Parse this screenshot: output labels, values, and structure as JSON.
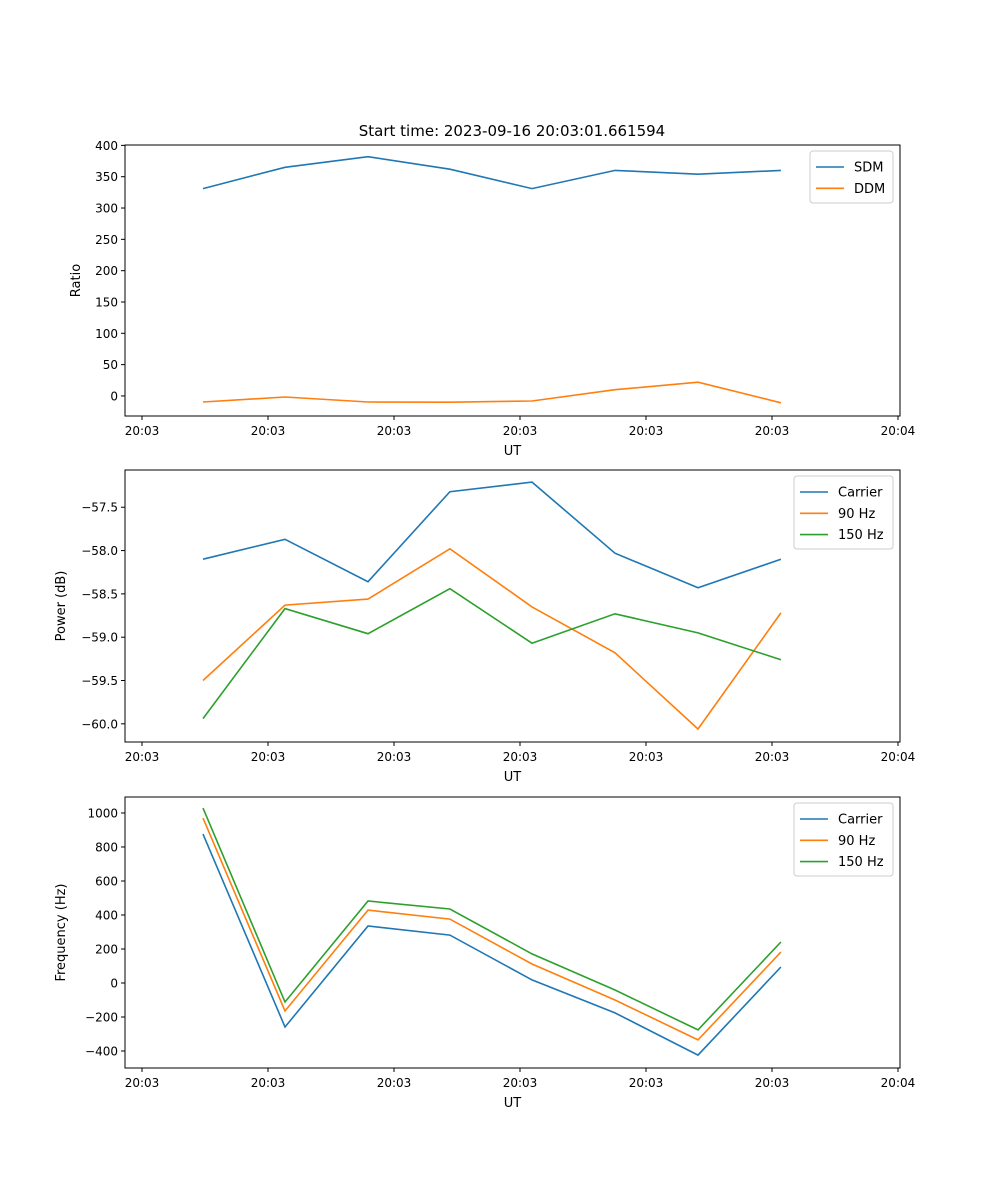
{
  "title": "Start time: 2023-09-16 20:03:01.661594",
  "chart_data": [
    {
      "type": "line",
      "xlabel": "UT",
      "ylabel": "Ratio",
      "xlim": [
        -1.35,
        60.16
      ],
      "ylim": [
        -32,
        400.6
      ],
      "x_ticks": [
        0,
        10,
        20,
        30,
        40,
        50,
        60
      ],
      "x_tick_labels": [
        "20:03",
        "20:03",
        "20:03",
        "20:03",
        "20:03",
        "20:03",
        "20:04"
      ],
      "y_ticks": [
        0,
        50,
        100,
        150,
        200,
        250,
        300,
        350,
        400
      ],
      "y_tick_labels": [
        "0",
        "50",
        "100",
        "150",
        "200",
        "250",
        "300",
        "350",
        "400"
      ],
      "legend_position": "top-right",
      "x": [
        4.84,
        11.35,
        17.94,
        24.44,
        30.95,
        37.54,
        44.13,
        50.71
      ],
      "series": [
        {
          "name": "SDM",
          "color": "#1f77b4",
          "values": [
            331,
            365,
            382,
            362,
            331,
            360,
            354,
            360
          ]
        },
        {
          "name": "DDM",
          "color": "#ff7f0e",
          "values": [
            -9.6,
            -1.6,
            -9.6,
            -10,
            -8,
            10,
            22,
            -11
          ]
        }
      ]
    },
    {
      "type": "line",
      "xlabel": "UT",
      "ylabel": "Power (dB)",
      "xlim": [
        -1.35,
        60.16
      ],
      "ylim": [
        -60.21,
        -57.07
      ],
      "x_ticks": [
        0,
        10,
        20,
        30,
        40,
        50,
        60
      ],
      "x_tick_labels": [
        "20:03",
        "20:03",
        "20:03",
        "20:03",
        "20:03",
        "20:03",
        "20:04"
      ],
      "y_ticks": [
        -57.5,
        -58.0,
        -58.5,
        -59.0,
        -59.5,
        -60.0
      ],
      "y_tick_labels": [
        "−57.5",
        "−58.0",
        "−58.5",
        "−59.0",
        "−59.5",
        "−60.0"
      ],
      "legend_position": "top-right",
      "x": [
        4.84,
        11.35,
        17.94,
        24.44,
        30.95,
        37.54,
        44.13,
        50.71
      ],
      "series": [
        {
          "name": "Carrier",
          "color": "#1f77b4",
          "values": [
            -58.1,
            -57.87,
            -58.36,
            -57.32,
            -57.21,
            -58.03,
            -58.43,
            -58.1
          ]
        },
        {
          "name": "90 Hz",
          "color": "#ff7f0e",
          "values": [
            -59.5,
            -58.63,
            -58.56,
            -57.98,
            -58.65,
            -59.18,
            -60.06,
            -58.72
          ]
        },
        {
          "name": "150 Hz",
          "color": "#2ca02c",
          "values": [
            -59.94,
            -58.67,
            -58.96,
            -58.44,
            -59.07,
            -58.73,
            -58.95,
            -59.26
          ]
        }
      ]
    },
    {
      "type": "line",
      "xlabel": "UT",
      "ylabel": "Frequency (Hz)",
      "xlim": [
        -1.35,
        60.16
      ],
      "ylim": [
        -500,
        1094
      ],
      "x_ticks": [
        0,
        10,
        20,
        30,
        40,
        50,
        60
      ],
      "x_tick_labels": [
        "20:03",
        "20:03",
        "20:03",
        "20:03",
        "20:03",
        "20:03",
        "20:04"
      ],
      "y_ticks": [
        1000,
        800,
        600,
        400,
        200,
        0,
        -200,
        -400
      ],
      "y_tick_labels": [
        "1000",
        "800",
        "600",
        "400",
        "200",
        "0",
        "−200",
        "−400"
      ],
      "legend_position": "top-right",
      "x": [
        4.84,
        11.35,
        17.94,
        24.44,
        30.95,
        37.54,
        44.13,
        50.71
      ],
      "series": [
        {
          "name": "Carrier",
          "color": "#1f77b4",
          "values": [
            876,
            -259,
            335,
            282,
            18,
            -176,
            -424,
            94
          ]
        },
        {
          "name": "90 Hz",
          "color": "#ff7f0e",
          "values": [
            970,
            -165,
            429,
            376,
            112,
            -100,
            -335,
            182
          ]
        },
        {
          "name": "150 Hz",
          "color": "#2ca02c",
          "values": [
            1029,
            -112,
            482,
            435,
            171,
            -41,
            -276,
            241
          ]
        }
      ]
    }
  ]
}
